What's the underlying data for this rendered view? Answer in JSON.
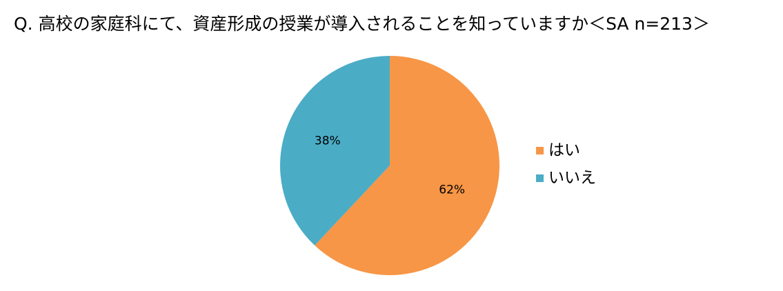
{
  "title": "Q. 高校の家庭科にて、資産形成の授業が導入されることを知っていますか＜SA n=213＞",
  "chart_data": {
    "type": "pie",
    "title": "Q. 高校の家庭科にて、資産形成の授業が導入されることを知っていますか＜SA n=213＞",
    "unit": "%",
    "slices": [
      {
        "name": "はい",
        "value": 62,
        "label": "62%",
        "color": "#F79646"
      },
      {
        "name": "いいえ",
        "value": 38,
        "label": "38%",
        "color": "#4BACC6"
      }
    ],
    "start": "12 o'clock",
    "direction": "clockwise",
    "legend_position": "right"
  }
}
